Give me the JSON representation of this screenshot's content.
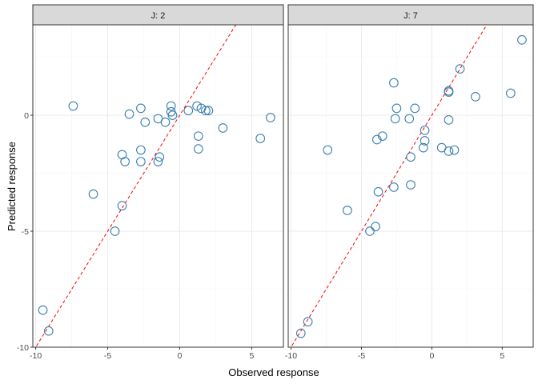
{
  "chart_data": {
    "type": "scatter",
    "xlabel": "Observed response",
    "ylabel": "Predicted response",
    "xlim": [
      -10.2,
      7.2
    ],
    "ylim": [
      -10,
      3.9
    ],
    "x_ticks": [
      -10,
      -5,
      0,
      5
    ],
    "y_ticks": [
      -10,
      -5,
      0
    ],
    "reference_line": "y = x",
    "grid": true,
    "point_color": "#3a7fb0",
    "line_color": "#ff0000",
    "panels": [
      {
        "label": "J: 2",
        "points": [
          [
            -9.5,
            -8.4
          ],
          [
            -9.1,
            -9.3
          ],
          [
            -7.4,
            0.4
          ],
          [
            -6.0,
            -3.4
          ],
          [
            -4.5,
            -5.0
          ],
          [
            -4.0,
            -3.9
          ],
          [
            -4.0,
            -1.7
          ],
          [
            -3.8,
            -2.0
          ],
          [
            -3.5,
            0.05
          ],
          [
            -2.7,
            0.3
          ],
          [
            -2.7,
            -1.5
          ],
          [
            -2.7,
            -2.0
          ],
          [
            -2.4,
            -0.3
          ],
          [
            -1.5,
            -2.0
          ],
          [
            -1.5,
            -0.15
          ],
          [
            -1.4,
            -1.8
          ],
          [
            -1.0,
            -0.3
          ],
          [
            -0.6,
            0.15
          ],
          [
            -0.6,
            0.4
          ],
          [
            -0.5,
            0.0
          ],
          [
            0.6,
            0.2
          ],
          [
            1.2,
            0.4
          ],
          [
            1.3,
            -0.9
          ],
          [
            1.3,
            -1.45
          ],
          [
            1.5,
            0.3
          ],
          [
            1.8,
            0.2
          ],
          [
            2.0,
            0.2
          ],
          [
            3.0,
            -0.55
          ],
          [
            5.6,
            -1.0
          ],
          [
            6.3,
            -0.1
          ]
        ]
      },
      {
        "label": "J: 7",
        "points": [
          [
            -9.3,
            -9.4
          ],
          [
            -8.8,
            -8.9
          ],
          [
            -7.4,
            -1.5
          ],
          [
            -6.0,
            -4.1
          ],
          [
            -4.4,
            -5.0
          ],
          [
            -4.0,
            -4.8
          ],
          [
            -3.9,
            -1.05
          ],
          [
            -3.8,
            -3.3
          ],
          [
            -3.5,
            -0.9
          ],
          [
            -2.7,
            -3.1
          ],
          [
            -2.7,
            1.4
          ],
          [
            -2.6,
            -0.15
          ],
          [
            -2.5,
            0.3
          ],
          [
            -1.6,
            -0.15
          ],
          [
            -1.5,
            -1.8
          ],
          [
            -1.5,
            -3.0
          ],
          [
            -1.2,
            0.3
          ],
          [
            -0.6,
            -1.4
          ],
          [
            -0.5,
            -0.65
          ],
          [
            -0.5,
            -1.1
          ],
          [
            0.7,
            -1.4
          ],
          [
            1.2,
            -1.55
          ],
          [
            1.2,
            1.05
          ],
          [
            1.2,
            -0.2
          ],
          [
            1.2,
            1.0
          ],
          [
            1.6,
            -1.5
          ],
          [
            2.0,
            2.0
          ],
          [
            3.1,
            0.8
          ],
          [
            5.6,
            0.95
          ],
          [
            6.4,
            3.25
          ]
        ]
      }
    ]
  }
}
